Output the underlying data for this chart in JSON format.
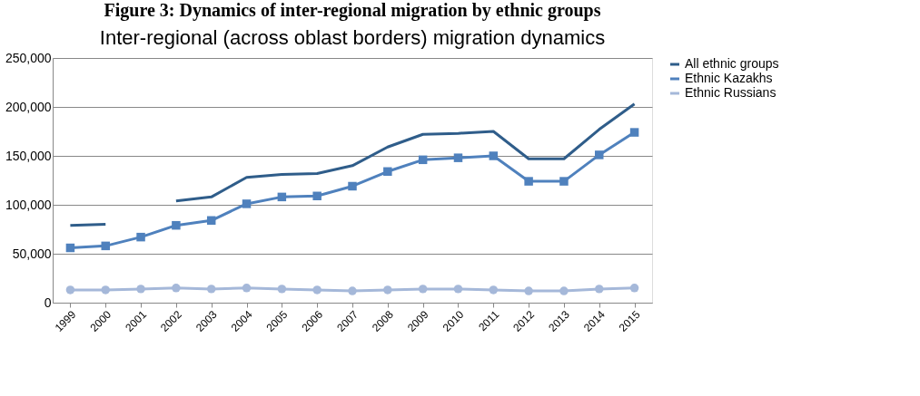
{
  "chart_data": {
    "type": "line",
    "title": "Figure 3: Dynamics of inter-regional migration by ethnic groups",
    "subtitle": "Inter-regional (across oblast borders) migration dynamics",
    "categories": [
      "1999",
      "2000",
      "2001",
      "2002",
      "2003",
      "2004",
      "2005",
      "2006",
      "2007",
      "2008",
      "2009",
      "2010",
      "2011",
      "2012",
      "2013",
      "2014",
      "2015"
    ],
    "series": [
      {
        "name": "All ethnic groups",
        "color": "#2f5d8a",
        "marker": "none",
        "values": [
          79000,
          80000,
          null,
          104000,
          108000,
          128000,
          131000,
          132000,
          140000,
          159000,
          172000,
          173000,
          175000,
          147000,
          147000,
          177000,
          203000
        ]
      },
      {
        "name": "Ethnic Kazakhs",
        "color": "#4f81bd",
        "marker": "square",
        "values": [
          56000,
          58000,
          67000,
          79000,
          84000,
          101000,
          108000,
          109000,
          119000,
          134000,
          146000,
          148000,
          150000,
          124000,
          124000,
          151000,
          174000
        ]
      },
      {
        "name": "Ethnic Russians",
        "color": "#a5b8d9",
        "marker": "circle",
        "values": [
          13000,
          13000,
          14000,
          15000,
          14000,
          15000,
          14000,
          13000,
          12000,
          13000,
          14000,
          14000,
          13000,
          12000,
          12000,
          14000,
          15000
        ]
      }
    ],
    "ylim": [
      0,
      250000
    ],
    "yticks": [
      0,
      {
        "value": 50000,
        "label": "50,000"
      },
      {
        "value": 100000,
        "label": "100,000"
      },
      {
        "value": 150000,
        "label": "150,000"
      },
      {
        "value": 200000,
        "label": "200,000"
      },
      {
        "value": 250000,
        "label": "250,000"
      }
    ],
    "grid": "y",
    "legend": "right"
  }
}
